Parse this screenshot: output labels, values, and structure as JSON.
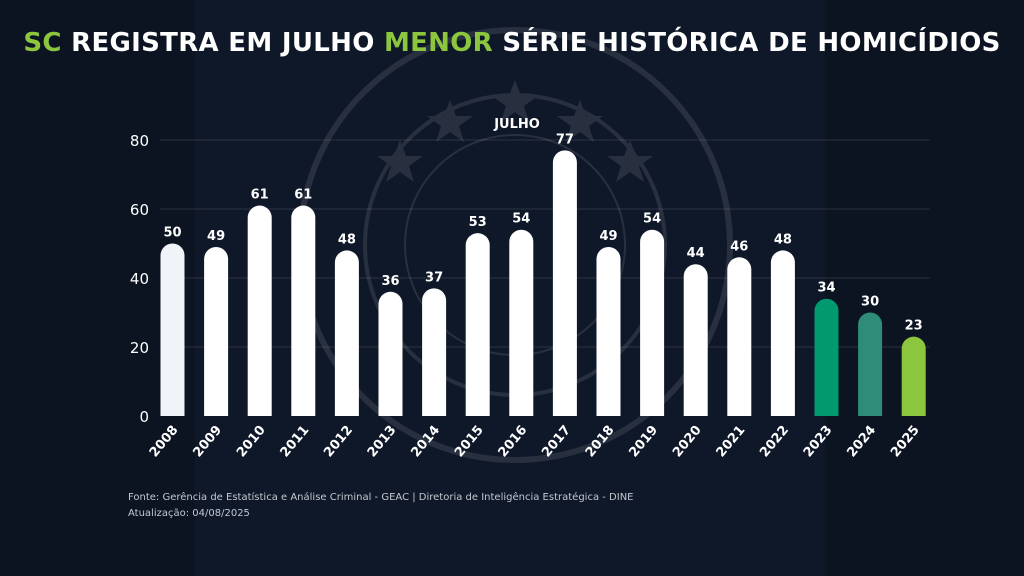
{
  "title": {
    "part1": "SC",
    "part2": " REGISTRA EM JULHO ",
    "part3": "MENOR",
    "part4": " SÉRIE HISTÓRICA DE HOMICÍDIOS"
  },
  "colors": {
    "highlight": "#8cc63f",
    "bar_default": "#ffffff",
    "bar_2023": "#009a6e",
    "bar_2024": "#2e8c78",
    "bar_2025": "#8cc63f"
  },
  "footer": {
    "source": "Fonte: Gerência de Estatística e Análise Criminal - GEAC  | Diretoria de Inteligência Estratégica - DINE",
    "updated": "Atualização: 04/08/2025"
  },
  "chart_data": {
    "type": "bar",
    "title": "JULHO",
    "categories": [
      "2008",
      "2009",
      "2010",
      "2011",
      "2012",
      "2013",
      "2014",
      "2015",
      "2016",
      "2017",
      "2018",
      "2019",
      "2020",
      "2021",
      "2022",
      "2023",
      "2024",
      "2025"
    ],
    "values": [
      50,
      49,
      61,
      61,
      48,
      36,
      37,
      53,
      54,
      77,
      49,
      54,
      44,
      46,
      48,
      34,
      30,
      23
    ],
    "ylim": [
      0,
      80
    ],
    "yticks": [
      0,
      20,
      40,
      60,
      80
    ],
    "grid": true,
    "data_labels": true
  }
}
